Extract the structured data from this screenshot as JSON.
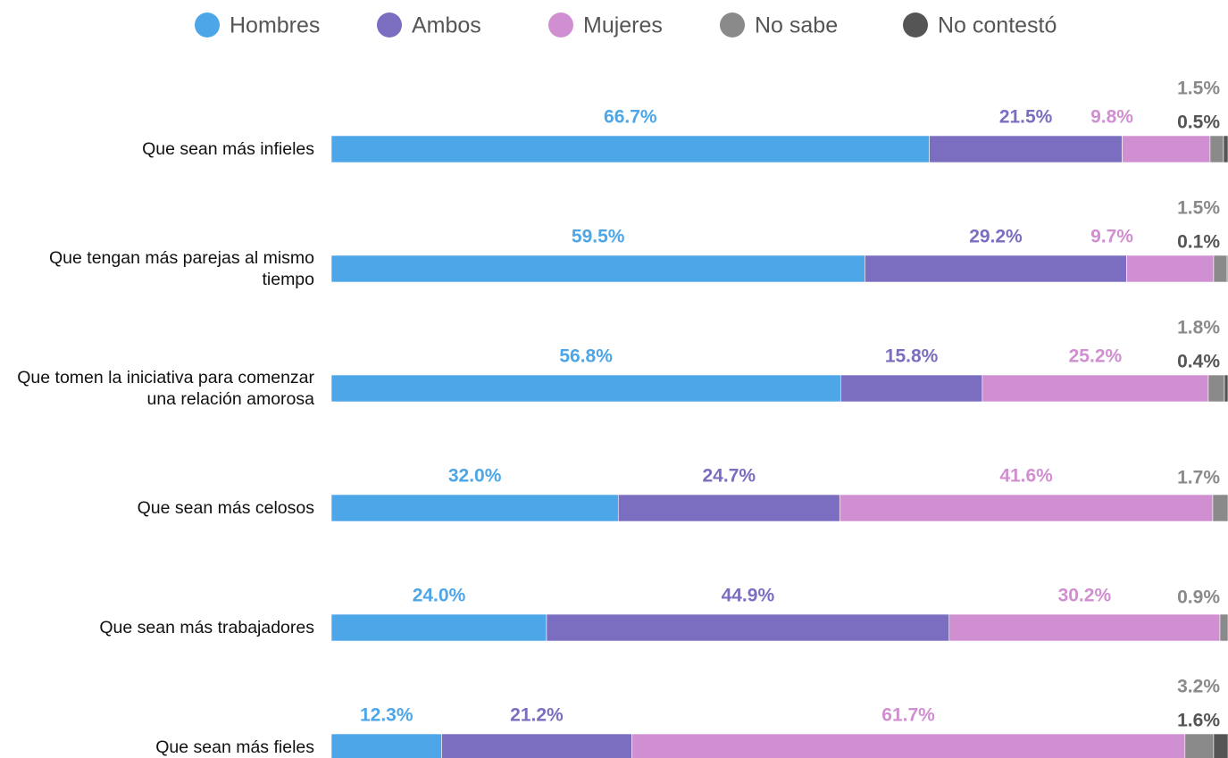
{
  "chart_data": {
    "type": "stacked-bar-horizontal",
    "categories": [
      "Que sean más infieles",
      "Que tengan más parejas al mismo tiempo",
      "Que tomen la iniciativa para comenzar una relación amorosa",
      "Que sean más celosos",
      "Que sean más trabajadores",
      "Que sean más fieles"
    ],
    "series": [
      {
        "name": "Hombres",
        "color": "#4da6e8",
        "values": [
          66.7,
          59.5,
          56.8,
          32.0,
          24.0,
          12.3
        ],
        "value_labels": [
          "66.7%",
          "59.5%",
          "56.8%",
          "32.0%",
          "24.0%",
          "12.3%"
        ]
      },
      {
        "name": "Ambos",
        "color": "#7b6dbf",
        "values": [
          21.5,
          29.2,
          15.8,
          24.7,
          44.9,
          21.2
        ],
        "value_labels": [
          "21.5%",
          "29.2%",
          "15.8%",
          "24.7%",
          "44.9%",
          "21.2%"
        ]
      },
      {
        "name": "Mujeres",
        "color": "#d08fd0",
        "values": [
          9.8,
          9.7,
          25.2,
          41.6,
          30.2,
          61.7
        ],
        "value_labels": [
          "9.8%",
          "9.7%",
          "25.2%",
          "41.6%",
          "30.2%",
          "61.7%"
        ]
      },
      {
        "name": "No sabe",
        "color": "#8a8a8a",
        "values": [
          1.5,
          1.5,
          1.8,
          1.7,
          0.9,
          3.2
        ],
        "value_labels": [
          "1.5%",
          "1.5%",
          "1.8%",
          "1.7%",
          "0.9%",
          "3.2%"
        ]
      },
      {
        "name": "No contestó",
        "color": "#555555",
        "values": [
          0.5,
          0.1,
          0.4,
          null,
          null,
          1.6
        ],
        "value_labels": [
          "0.5%",
          "0.1%",
          "0.4%",
          null,
          null,
          "1.6%"
        ]
      }
    ],
    "xlim": [
      0,
      100
    ],
    "legend": "top"
  }
}
